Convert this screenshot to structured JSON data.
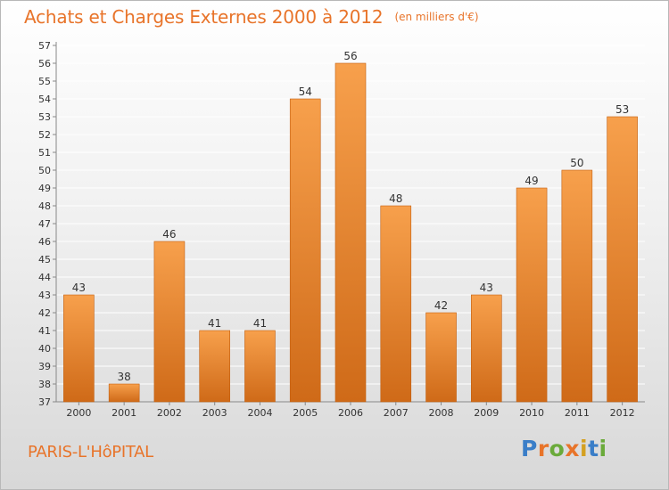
{
  "header": {
    "title": "Achats et Charges Externes 2000 à 2012",
    "unit": "(en milliers d'€)"
  },
  "footer": {
    "place": "PARIS-L'HôPITAL",
    "logo_text": "Proxiti",
    "logo_colors": [
      "#3a7ec8",
      "#e8742a",
      "#6aaa3a",
      "#e8742a",
      "#d4a020",
      "#3a7ec8",
      "#6aaa3a"
    ]
  },
  "colors": {
    "bar_top": "#f7a04c",
    "bar_bottom": "#cf6a18",
    "bar_edge": "#c25f10",
    "accent": "#e8742a",
    "grid": "#ffffff",
    "text": "#333333"
  },
  "chart_data": {
    "type": "bar",
    "categories": [
      "2000",
      "2001",
      "2002",
      "2003",
      "2004",
      "2005",
      "2006",
      "2007",
      "2008",
      "2009",
      "2010",
      "2011",
      "2012"
    ],
    "values": [
      43,
      38,
      46,
      41,
      41,
      54,
      56,
      48,
      42,
      43,
      49,
      50,
      53
    ],
    "data_labels": [
      "43",
      "38",
      "46",
      "41",
      "41",
      "54",
      "56",
      "48",
      "42",
      "43",
      "49",
      "50",
      "53"
    ],
    "yticks": [
      "37",
      "38",
      "39",
      "40",
      "41",
      "42",
      "43",
      "44",
      "45",
      "46",
      "47",
      "48",
      "49",
      "50",
      "51",
      "52",
      "53",
      "54",
      "55",
      "56",
      "57"
    ],
    "ylim": [
      37,
      57
    ],
    "grid": true,
    "title": "Achats et Charges Externes 2000 à 2012",
    "xlabel": "",
    "ylabel": ""
  }
}
